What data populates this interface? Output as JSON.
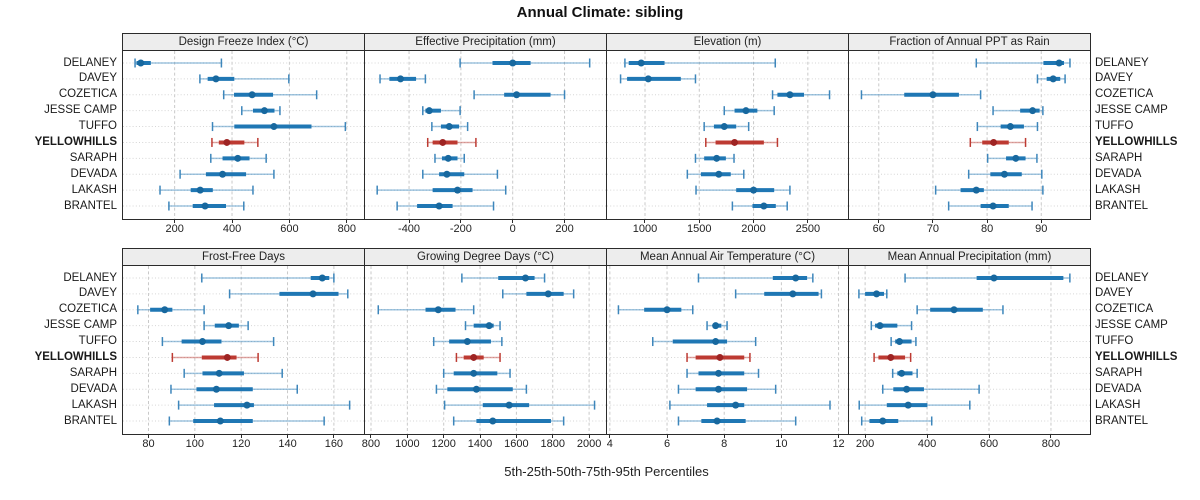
{
  "title": "Annual Climate: sibling",
  "caption": "5th-25th-50th-75th-95th Percentiles",
  "stations": [
    "DELANEY",
    "DAVEY",
    "COZETICA",
    "JESSE CAMP",
    "TUFFO",
    "YELLOWHILLS",
    "SARAPH",
    "DEVADA",
    "LAKASH",
    "BRANTEL"
  ],
  "highlight_station": "YELLOWHILLS",
  "percentile_labels": [
    "5th",
    "25th",
    "50th",
    "75th",
    "95th"
  ],
  "colors": {
    "blue_thick": "#1f77b4",
    "blue_thin": "rgba(31,119,180,0.42)",
    "blue_cap": "#3d86bb",
    "blue_dot": "#17689f",
    "red_thick": "#bd3a32",
    "red_thin": "rgba(189,58,50,0.45)",
    "red_cap": "#bd3a32",
    "red_dot": "#9e2423",
    "grid": "#c9c9c9",
    "row_guide": "#d6d6d6",
    "panel_border": "#2b2b2b",
    "header_bg": "#ededed"
  },
  "chart_data": [
    {
      "type": "percentile-dot-whisker",
      "title": "Design Freeze Index (°C)",
      "xlim": [
        20,
        860
      ],
      "ticks": [
        200,
        400,
        600,
        800
      ],
      "values": [
        [
          62,
          67,
          82,
          117,
          363
        ],
        [
          288,
          315,
          344,
          408,
          598
        ],
        [
          371,
          407,
          470,
          543,
          695
        ],
        [
          434,
          473,
          513,
          548,
          567
        ],
        [
          332,
          408,
          546,
          677,
          795
        ],
        [
          330,
          354,
          382,
          443,
          490
        ],
        [
          326,
          367,
          420,
          461,
          519
        ],
        [
          219,
          309,
          367,
          449,
          546
        ],
        [
          149,
          256,
          289,
          333,
          473
        ],
        [
          180,
          263,
          306,
          379,
          441
        ]
      ]
    },
    {
      "type": "percentile-dot-whisker",
      "title": "Effective Precipitation (mm)",
      "xlim": [
        -570,
        360
      ],
      "ticks": [
        -400,
        -200,
        0,
        200
      ],
      "values": [
        [
          -203,
          -78,
          0,
          69,
          297
        ],
        [
          -512,
          -476,
          -433,
          -373,
          -337
        ],
        [
          -149,
          -33,
          15,
          146,
          200
        ],
        [
          -347,
          -337,
          -322,
          -277,
          -203
        ],
        [
          -312,
          -277,
          -245,
          -207,
          -174
        ],
        [
          -328,
          -309,
          -270,
          -213,
          -142
        ],
        [
          -300,
          -273,
          -249,
          -213,
          -187
        ],
        [
          -347,
          -284,
          -254,
          -187,
          -59
        ],
        [
          -523,
          -309,
          -213,
          -155,
          -27
        ],
        [
          -446,
          -369,
          -284,
          -232,
          -74
        ]
      ]
    },
    {
      "type": "percentile-dot-whisker",
      "title": "Elevation (m)",
      "xlim": [
        650,
        2870
      ],
      "ticks": [
        1000,
        1500,
        2000,
        2500
      ],
      "values": [
        [
          815,
          850,
          965,
          1180,
          2200
        ],
        [
          775,
          835,
          1030,
          1330,
          1465
        ],
        [
          2175,
          2220,
          2335,
          2465,
          2700
        ],
        [
          1730,
          1825,
          1930,
          2035,
          2190
        ],
        [
          1545,
          1635,
          1730,
          1840,
          1955
        ],
        [
          1560,
          1650,
          1825,
          2095,
          2220
        ],
        [
          1465,
          1545,
          1660,
          1745,
          1820
        ],
        [
          1390,
          1515,
          1680,
          1790,
          1910
        ],
        [
          1470,
          1840,
          2000,
          2190,
          2335
        ],
        [
          1805,
          1990,
          2095,
          2205,
          2310
        ]
      ]
    },
    {
      "type": "percentile-dot-whisker",
      "title": "Fraction of Annual PPT as Rain",
      "xlim": [
        54.5,
        99
      ],
      "ticks": [
        60,
        70,
        80,
        90
      ],
      "values": [
        [
          78,
          90.4,
          93.3,
          94.2,
          95.3
        ],
        [
          89.3,
          91,
          92.2,
          93.5,
          94.4
        ],
        [
          56.8,
          64.7,
          70,
          74.8,
          78.8
        ],
        [
          81.1,
          86.1,
          88.4,
          89.7,
          90.3
        ],
        [
          78.2,
          82.5,
          84.3,
          86.8,
          89.3
        ],
        [
          76.9,
          79.1,
          81.2,
          84,
          87.1
        ],
        [
          80.1,
          83.5,
          85.3,
          87.1,
          89.2
        ],
        [
          76.6,
          80.6,
          83.2,
          86.4,
          90.1
        ],
        [
          70.5,
          75.1,
          78,
          79.4,
          90.3
        ],
        [
          72.9,
          78.8,
          81.1,
          84,
          88.3
        ]
      ]
    },
    {
      "type": "percentile-dot-whisker",
      "title": "Frost-Free Days",
      "xlim": [
        69,
        173
      ],
      "ticks": [
        80,
        100,
        120,
        140,
        160
      ],
      "values": [
        [
          103,
          150,
          155,
          158,
          160
        ],
        [
          115,
          136.5,
          151,
          162,
          166
        ],
        [
          75.4,
          80.7,
          87,
          90.3,
          104
        ],
        [
          104,
          108.6,
          114.6,
          119,
          123
        ],
        [
          86,
          94.3,
          103.3,
          111.5,
          134
        ],
        [
          90.3,
          103,
          114,
          118,
          127.3
        ],
        [
          95.4,
          103.3,
          110.5,
          121.2,
          137.7
        ],
        [
          89.7,
          100.7,
          109.3,
          125,
          144.2
        ],
        [
          93,
          108.3,
          122.5,
          125.5,
          166.8
        ],
        [
          89,
          99.3,
          111,
          125,
          155.8
        ]
      ]
    },
    {
      "type": "percentile-dot-whisker",
      "title": "Growing Degree Days (°C)",
      "xlim": [
        767,
        2093
      ],
      "ticks": [
        800,
        1000,
        1200,
        1400,
        1600,
        1800,
        2000
      ],
      "values": [
        [
          1300,
          1500,
          1650,
          1700,
          1755
        ],
        [
          1525,
          1655,
          1775,
          1860,
          1915
        ],
        [
          840,
          1100,
          1170,
          1265,
          1365
        ],
        [
          1320,
          1365,
          1450,
          1475,
          1510
        ],
        [
          1145,
          1230,
          1330,
          1460,
          1520
        ],
        [
          1270,
          1310,
          1365,
          1420,
          1510
        ],
        [
          1200,
          1255,
          1365,
          1495,
          1565
        ],
        [
          1160,
          1220,
          1380,
          1580,
          1655
        ],
        [
          1205,
          1415,
          1560,
          1670,
          2030
        ],
        [
          1255,
          1380,
          1470,
          1790,
          1860
        ]
      ]
    },
    {
      "type": "percentile-dot-whisker",
      "title": "Mean Annual Air Temperature (°C)",
      "xlim": [
        3.9,
        12.33
      ],
      "ticks": [
        4,
        6,
        8,
        10,
        12
      ],
      "values": [
        [
          7.1,
          9.7,
          10.5,
          10.9,
          11.1
        ],
        [
          8.4,
          9.4,
          10.4,
          11.3,
          11.4
        ],
        [
          4.3,
          5.2,
          6,
          6.5,
          6.9
        ],
        [
          7.4,
          7.6,
          7.7,
          7.9,
          8.1
        ],
        [
          5.5,
          6.2,
          7.7,
          8.1,
          9.1
        ],
        [
          6.7,
          7,
          7.85,
          8.7,
          8.9
        ],
        [
          6.7,
          7.1,
          7.8,
          8.7,
          9.2
        ],
        [
          6.4,
          7,
          7.8,
          8.8,
          9.8
        ],
        [
          6.1,
          7.4,
          8.4,
          8.7,
          11.7
        ],
        [
          6.4,
          7.2,
          7.75,
          8.75,
          10.5
        ]
      ]
    },
    {
      "type": "percentile-dot-whisker",
      "title": "Mean Annual Precipitation (mm)",
      "xlim": [
        148,
        926
      ],
      "ticks": [
        200,
        400,
        600,
        800
      ],
      "values": [
        [
          329,
          560,
          616,
          840,
          861
        ],
        [
          180,
          200,
          237,
          261,
          270
        ],
        [
          368,
          410,
          487,
          580,
          645
        ],
        [
          220,
          232,
          248,
          304,
          350
        ],
        [
          284,
          297,
          311,
          350,
          364
        ],
        [
          229,
          243,
          283,
          329,
          347
        ],
        [
          289,
          304,
          318,
          353,
          368
        ],
        [
          257,
          291,
          334,
          390,
          568
        ],
        [
          181,
          270,
          339,
          401,
          538
        ],
        [
          189,
          214,
          257,
          307,
          415
        ]
      ]
    }
  ]
}
